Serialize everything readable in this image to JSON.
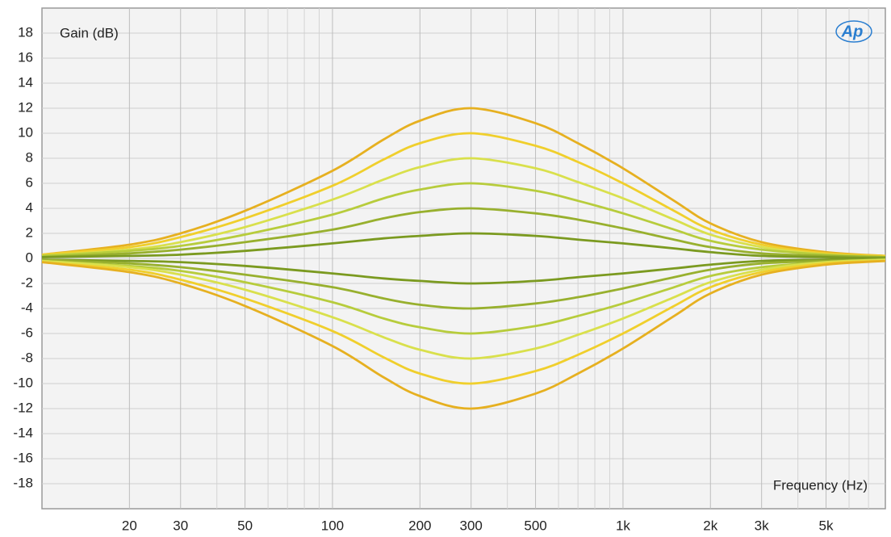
{
  "chart_data": {
    "type": "line",
    "y_label": "Gain (dB)",
    "x_label": "Frequency (Hz)",
    "logo": "Ap",
    "x": [
      10,
      20,
      30,
      50,
      100,
      150,
      200,
      300,
      500,
      700,
      1000,
      1500,
      2000,
      3000,
      5000,
      8000
    ],
    "log_x": true,
    "xlim": [
      10,
      8000
    ],
    "xticks": [
      20,
      30,
      50,
      100,
      200,
      300,
      500,
      {
        "value": 1000,
        "label": "1k"
      },
      {
        "value": 2000,
        "label": "2k"
      },
      {
        "value": 3000,
        "label": "3k"
      },
      {
        "value": 5000,
        "label": "5k"
      }
    ],
    "xminorticks": [
      40,
      60,
      70,
      80,
      90,
      400,
      600,
      700,
      800,
      900,
      4000,
      6000,
      7000
    ],
    "ylim": [
      -20,
      20
    ],
    "yticks": [
      -18,
      -16,
      -14,
      -12,
      -10,
      -8,
      -6,
      -4,
      -2,
      0,
      2,
      4,
      6,
      8,
      10,
      12,
      14,
      16,
      18
    ],
    "grid": true,
    "series": [
      {
        "color": "#e6b020",
        "values": [
          0.3,
          1.1,
          2.0,
          3.8,
          7.0,
          9.5,
          11.0,
          12.0,
          10.8,
          9.2,
          7.2,
          4.6,
          2.8,
          1.3,
          0.5,
          0.2
        ]
      },
      {
        "color": "#f0cf2c",
        "values": [
          0.3,
          0.9,
          1.7,
          3.2,
          5.8,
          7.9,
          9.2,
          10.0,
          9.0,
          7.7,
          6.0,
          3.8,
          2.3,
          1.1,
          0.4,
          0.2
        ]
      },
      {
        "color": "#d9e04c",
        "values": [
          0.2,
          0.7,
          1.3,
          2.5,
          4.7,
          6.3,
          7.3,
          8.0,
          7.2,
          6.1,
          4.8,
          3.1,
          1.9,
          0.9,
          0.3,
          0.1
        ]
      },
      {
        "color": "#b7cc3c",
        "values": [
          0.2,
          0.6,
          1.0,
          1.9,
          3.5,
          4.8,
          5.5,
          6.0,
          5.4,
          4.6,
          3.6,
          2.3,
          1.4,
          0.7,
          0.3,
          0.1
        ]
      },
      {
        "color": "#98b02e",
        "values": [
          0.1,
          0.4,
          0.7,
          1.3,
          2.3,
          3.2,
          3.7,
          4.0,
          3.6,
          3.1,
          2.4,
          1.5,
          0.9,
          0.4,
          0.2,
          0.1
        ]
      },
      {
        "color": "#7b9a20",
        "values": [
          0.1,
          0.2,
          0.3,
          0.6,
          1.2,
          1.6,
          1.8,
          2.0,
          1.8,
          1.5,
          1.2,
          0.8,
          0.5,
          0.2,
          0.1,
          0.0
        ]
      },
      {
        "color": "#7b9a20",
        "values": [
          -0.1,
          -0.2,
          -0.3,
          -0.6,
          -1.2,
          -1.6,
          -1.8,
          -2.0,
          -1.8,
          -1.5,
          -1.2,
          -0.8,
          -0.5,
          -0.2,
          -0.1,
          0.0
        ]
      },
      {
        "color": "#98b02e",
        "values": [
          -0.1,
          -0.4,
          -0.7,
          -1.3,
          -2.3,
          -3.2,
          -3.7,
          -4.0,
          -3.6,
          -3.1,
          -2.4,
          -1.5,
          -0.9,
          -0.4,
          -0.2,
          -0.1
        ]
      },
      {
        "color": "#b7cc3c",
        "values": [
          -0.2,
          -0.6,
          -1.0,
          -1.9,
          -3.5,
          -4.8,
          -5.5,
          -6.0,
          -5.4,
          -4.6,
          -3.6,
          -2.3,
          -1.4,
          -0.7,
          -0.3,
          -0.1
        ]
      },
      {
        "color": "#d9e04c",
        "values": [
          -0.2,
          -0.7,
          -1.3,
          -2.5,
          -4.7,
          -6.3,
          -7.3,
          -8.0,
          -7.2,
          -6.1,
          -4.8,
          -3.1,
          -1.9,
          -0.9,
          -0.3,
          -0.1
        ]
      },
      {
        "color": "#f0cf2c",
        "values": [
          -0.3,
          -0.9,
          -1.7,
          -3.2,
          -5.8,
          -7.9,
          -9.2,
          -10.0,
          -9.0,
          -7.7,
          -6.0,
          -3.8,
          -2.3,
          -1.1,
          -0.4,
          -0.2
        ]
      },
      {
        "color": "#e6b020",
        "values": [
          -0.3,
          -1.1,
          -2.0,
          -3.8,
          -7.0,
          -9.5,
          -11.0,
          -12.0,
          -10.8,
          -9.2,
          -7.2,
          -4.6,
          -2.8,
          -1.3,
          -0.5,
          -0.2
        ]
      }
    ]
  }
}
